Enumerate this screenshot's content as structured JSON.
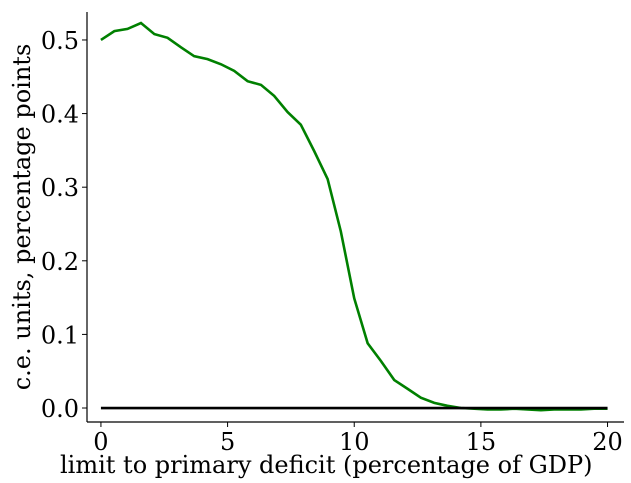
{
  "chart_data": {
    "type": "line",
    "xlabel": "limit to primary deficit (percentage of GDP)",
    "ylabel": "c.e. units, percentage points",
    "x": [
      0,
      0.53,
      1.05,
      1.58,
      2.11,
      2.63,
      3.16,
      3.68,
      4.21,
      4.74,
      5.26,
      5.79,
      6.32,
      6.84,
      7.37,
      7.89,
      8.42,
      8.95,
      9.47,
      10,
      10.53,
      11.05,
      11.58,
      12.11,
      12.63,
      13.16,
      13.68,
      14.21,
      14.74,
      15.26,
      15.79,
      16.32,
      16.84,
      17.37,
      17.89,
      18.42,
      18.95,
      19.47,
      20
    ],
    "series": [
      {
        "color": "#008000",
        "values": [
          0.5,
          0.512,
          0.515,
          0.523,
          0.508,
          0.503,
          0.49,
          0.478,
          0.474,
          0.467,
          0.458,
          0.444,
          0.439,
          0.424,
          0.402,
          0.385,
          0.349,
          0.311,
          0.24,
          0.149,
          0.088,
          0.064,
          0.038,
          0.026,
          0.014,
          0.007,
          0.003,
          0,
          -0.001,
          -0.002,
          -0.002,
          -0.001,
          -0.002,
          -0.003,
          -0.002,
          -0.002,
          -0.002,
          -0.001,
          -0.001
        ]
      },
      {
        "color": "#000000",
        "x": [
          0,
          20
        ],
        "values": [
          0,
          0
        ]
      }
    ],
    "xlim": [
      -0.55,
      20.65
    ],
    "ylim": [
      -0.019,
      0.538
    ],
    "xticks": [
      0,
      5,
      10,
      15,
      20
    ],
    "yticks": [
      {
        "value": 0,
        "label": "0.0"
      },
      0.1,
      0.2,
      0.3,
      0.4,
      0.5
    ]
  }
}
